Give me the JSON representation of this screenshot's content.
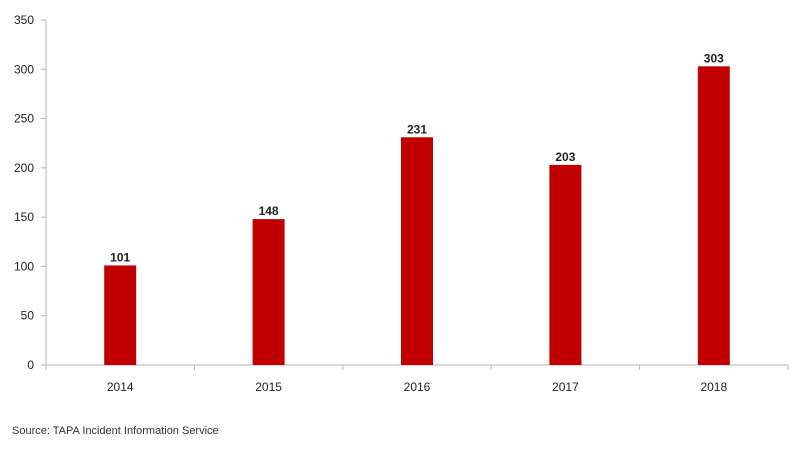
{
  "chart_data": {
    "type": "bar",
    "categories": [
      "2014",
      "2015",
      "2016",
      "2017",
      "2018"
    ],
    "values": [
      101,
      148,
      231,
      203,
      303
    ],
    "data_labels": [
      "101",
      "148",
      "231",
      "203",
      "303"
    ],
    "title": "",
    "xlabel": "",
    "ylabel": "",
    "ylim": [
      0,
      350
    ],
    "yticks": [
      0,
      50,
      100,
      150,
      200,
      250,
      300,
      350
    ],
    "ytick_labels": [
      "0",
      "50",
      "100",
      "150",
      "200",
      "250",
      "300",
      "350"
    ],
    "grid": false,
    "legend": "none",
    "bar_color": "#c00000"
  },
  "source": "Source: TAPA Incident Information Service"
}
